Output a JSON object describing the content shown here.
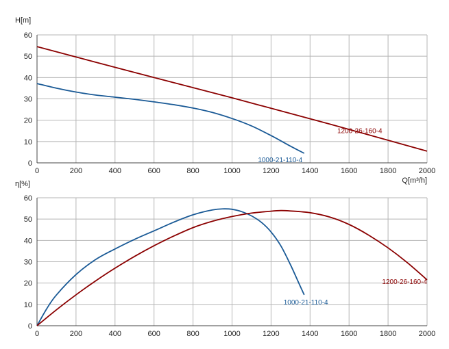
{
  "colors": {
    "blue": "#1a5a96",
    "red": "#8b0000",
    "grid": "#b5b5b5",
    "axis": "#444444"
  },
  "chart_data": [
    {
      "type": "line",
      "ylabel": "H[m]",
      "xlabel": "Q[m³/h]",
      "xlim": [
        0,
        2000
      ],
      "ylim": [
        0,
        60
      ],
      "xticks": [
        0,
        200,
        400,
        600,
        800,
        1000,
        1200,
        1400,
        1600,
        1800,
        2000
      ],
      "yticks": [
        0,
        10,
        20,
        30,
        40,
        50,
        60
      ],
      "grid": true,
      "series": [
        {
          "name": "1000-21-110-4",
          "color": "#1a5a96",
          "x": [
            0,
            100,
            200,
            300,
            400,
            500,
            600,
            700,
            800,
            900,
            1000,
            1100,
            1200,
            1300,
            1370
          ],
          "y": [
            37.2,
            35.0,
            33.2,
            31.8,
            30.8,
            29.8,
            28.6,
            27.3,
            25.7,
            23.6,
            20.8,
            17.3,
            12.8,
            7.8,
            4.5
          ]
        },
        {
          "name": "1200-26-160-4",
          "color": "#8b0000",
          "x": [
            0,
            500,
            1000,
            1500,
            2000
          ],
          "y": [
            54.5,
            42.4,
            30.5,
            18.2,
            5.5
          ]
        }
      ]
    },
    {
      "type": "line",
      "ylabel": "η[%]",
      "xlabel": "",
      "xlim": [
        0,
        2000
      ],
      "ylim": [
        0,
        60
      ],
      "xticks": [
        0,
        200,
        400,
        600,
        800,
        1000,
        1200,
        1400,
        1600,
        1800,
        2000
      ],
      "yticks": [
        0,
        10,
        20,
        30,
        40,
        50,
        60
      ],
      "grid": true,
      "series": [
        {
          "name": "1000-21-110-4",
          "color": "#1a5a96",
          "x": [
            0,
            50,
            100,
            200,
            300,
            400,
            500,
            600,
            700,
            800,
            900,
            960,
            1000,
            1050,
            1100,
            1150,
            1200,
            1250,
            1300,
            1340,
            1370
          ],
          "y": [
            0,
            8,
            14.5,
            24,
            31,
            36,
            40.5,
            44.5,
            48.5,
            52,
            54.3,
            54.8,
            54.6,
            53.5,
            51.5,
            48.5,
            44,
            37.5,
            28.5,
            20.5,
            14.5
          ]
        },
        {
          "name": "1200-26-160-4",
          "color": "#8b0000",
          "x": [
            0,
            100,
            200,
            300,
            400,
            500,
            600,
            700,
            800,
            900,
            1000,
            1100,
            1200,
            1250,
            1300,
            1400,
            1500,
            1600,
            1700,
            1800,
            1900,
            2000
          ],
          "y": [
            0,
            7.5,
            14.5,
            21,
            27,
            32.5,
            37.5,
            42,
            46,
            49,
            51.2,
            52.8,
            53.7,
            54,
            53.8,
            53,
            51,
            47.5,
            42.5,
            36.5,
            29.5,
            21.5
          ]
        }
      ]
    }
  ]
}
